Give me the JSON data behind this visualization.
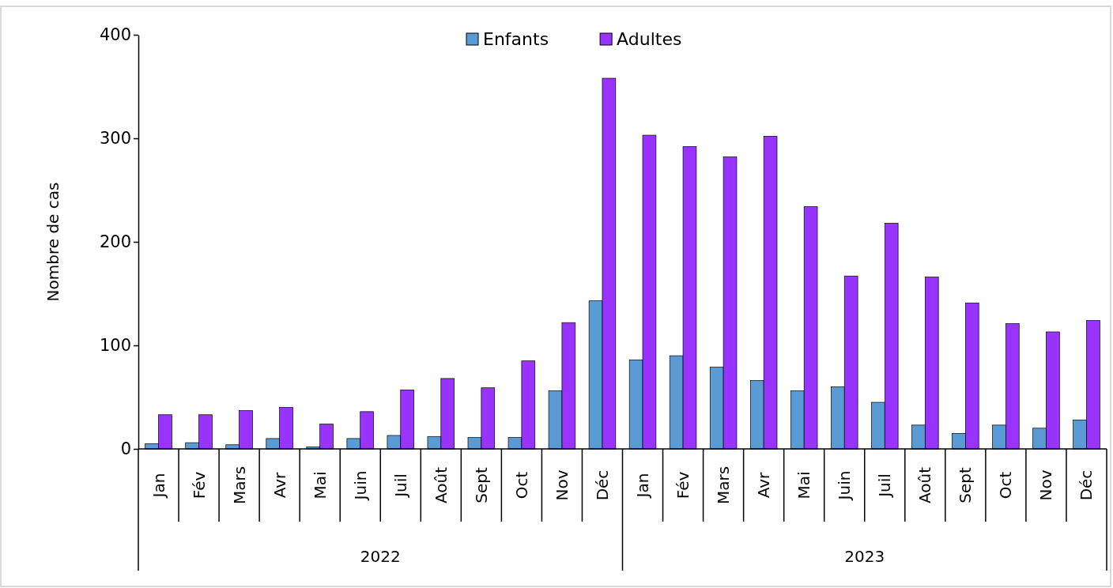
{
  "chart_data": {
    "type": "bar",
    "ylabel": "Nombre de cas",
    "categories": [
      "Jan",
      "Fév",
      "Mars",
      "Avr",
      "Mai",
      "Juin",
      "Juil",
      "Août",
      "Sept",
      "Oct",
      "Nov",
      "Déc",
      "Jan",
      "Fév",
      "Mars",
      "Avr",
      "Mai",
      "Juin",
      "Juil",
      "Août",
      "Sept",
      "Oct",
      "Nov",
      "Déc"
    ],
    "series": [
      {
        "name": "Enfants",
        "color": "#5b9bd5",
        "values": [
          5,
          6,
          4,
          10,
          2,
          10,
          13,
          12,
          11,
          11,
          56,
          143,
          86,
          90,
          79,
          66,
          56,
          60,
          45,
          23,
          15,
          23,
          20,
          28
        ]
      },
      {
        "name": "Adultes",
        "color": "#9933ff",
        "values": [
          33,
          33,
          37,
          40,
          24,
          36,
          57,
          68,
          59,
          85,
          122,
          358,
          303,
          292,
          282,
          302,
          234,
          167,
          218,
          166,
          141,
          121,
          113,
          124
        ]
      }
    ],
    "ylim": [
      0,
      400
    ],
    "yticks": [
      0,
      100,
      200,
      300,
      400
    ],
    "grid": false,
    "legend": "top",
    "annotations": [
      "2022",
      "2023"
    ]
  }
}
